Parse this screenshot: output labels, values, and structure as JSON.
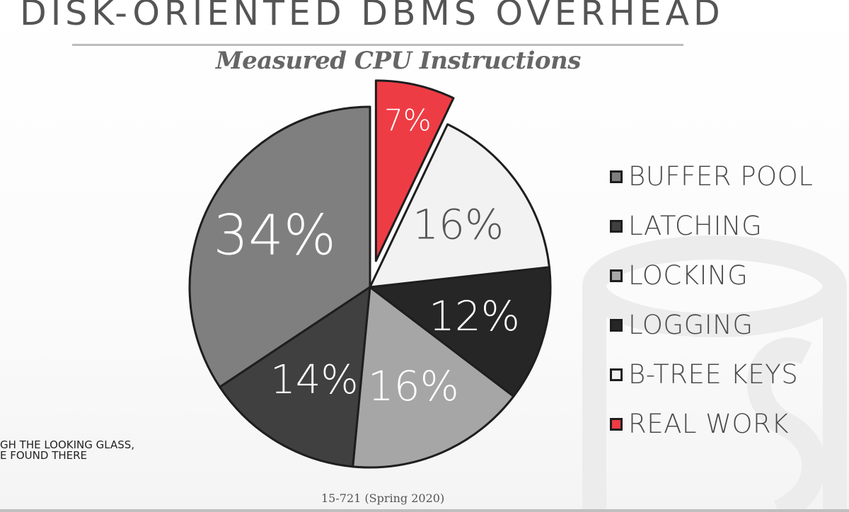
{
  "header": {
    "title": "DISK-ORIENTED DBMS OVERHEAD",
    "subtitle": "Measured CPU Instructions"
  },
  "reference": {
    "line1": "GH THE LOOKING GLASS,",
    "line2": "E FOUND THERE"
  },
  "footer": {
    "text": "15-721 (Spring 2020)"
  },
  "chart_data": {
    "type": "pie",
    "start_angle_deg": 90,
    "direction": "counterclockwise",
    "exploded": "REAL WORK",
    "slices": [
      {
        "name": "BUFFER POOL",
        "value": 34,
        "label": "34%",
        "color": "#7f7f7f"
      },
      {
        "name": "LATCHING",
        "value": 14,
        "label": "14%",
        "color": "#404040"
      },
      {
        "name": "LOCKING",
        "value": 16,
        "label": "16%",
        "color": "#a6a6a6"
      },
      {
        "name": "LOGGING",
        "value": 12,
        "label": "12%",
        "color": "#262626"
      },
      {
        "name": "B-TREE KEYS",
        "value": 16,
        "label": "16%",
        "color": "#f2f2f2"
      },
      {
        "name": "REAL WORK",
        "value": 7,
        "label": "7%",
        "color": "#ee3c45"
      }
    ],
    "legend_position": "right"
  }
}
